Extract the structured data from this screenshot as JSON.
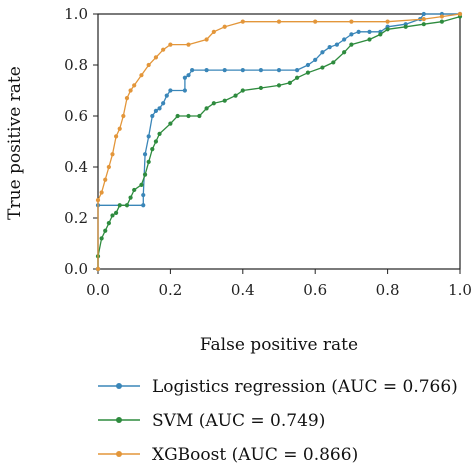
{
  "chart_data": {
    "type": "line",
    "xlabel": "False positive rate",
    "ylabel": "True positive rate",
    "xlim": [
      0,
      1
    ],
    "ylim": [
      0,
      1
    ],
    "xticks": [
      "0.0",
      "0.2",
      "0.4",
      "0.6",
      "0.8",
      "1.0"
    ],
    "yticks": [
      "0.0",
      "0.2",
      "0.4",
      "0.6",
      "0.8",
      "1.0"
    ],
    "grid": false,
    "legend_position": "below",
    "series": [
      {
        "name": "Logistics regression (AUC = 0.766)",
        "color": "#3a86b8",
        "points": [
          [
            0,
            0
          ],
          [
            0,
            0.25
          ],
          [
            0.125,
            0.25
          ],
          [
            0.125,
            0.29
          ],
          [
            0.13,
            0.45
          ],
          [
            0.14,
            0.52
          ],
          [
            0.15,
            0.6
          ],
          [
            0.16,
            0.62
          ],
          [
            0.17,
            0.63
          ],
          [
            0.18,
            0.65
          ],
          [
            0.19,
            0.68
          ],
          [
            0.2,
            0.7
          ],
          [
            0.24,
            0.7
          ],
          [
            0.24,
            0.75
          ],
          [
            0.25,
            0.76
          ],
          [
            0.26,
            0.78
          ],
          [
            0.3,
            0.78
          ],
          [
            0.35,
            0.78
          ],
          [
            0.4,
            0.78
          ],
          [
            0.45,
            0.78
          ],
          [
            0.5,
            0.78
          ],
          [
            0.55,
            0.78
          ],
          [
            0.58,
            0.8
          ],
          [
            0.6,
            0.82
          ],
          [
            0.62,
            0.85
          ],
          [
            0.64,
            0.87
          ],
          [
            0.66,
            0.88
          ],
          [
            0.68,
            0.9
          ],
          [
            0.7,
            0.92
          ],
          [
            0.72,
            0.93
          ],
          [
            0.75,
            0.93
          ],
          [
            0.78,
            0.93
          ],
          [
            0.8,
            0.95
          ],
          [
            0.85,
            0.96
          ],
          [
            0.89,
            0.98
          ],
          [
            0.9,
            1.0
          ],
          [
            0.95,
            1.0
          ],
          [
            1.0,
            1.0
          ]
        ]
      },
      {
        "name": "SVM (AUC = 0.749)",
        "color": "#2e8b3e",
        "points": [
          [
            0,
            0
          ],
          [
            0,
            0.05
          ],
          [
            0.01,
            0.12
          ],
          [
            0.02,
            0.15
          ],
          [
            0.03,
            0.18
          ],
          [
            0.04,
            0.21
          ],
          [
            0.05,
            0.22
          ],
          [
            0.06,
            0.25
          ],
          [
            0.08,
            0.25
          ],
          [
            0.09,
            0.28
          ],
          [
            0.1,
            0.31
          ],
          [
            0.12,
            0.33
          ],
          [
            0.13,
            0.37
          ],
          [
            0.14,
            0.42
          ],
          [
            0.15,
            0.47
          ],
          [
            0.16,
            0.5
          ],
          [
            0.17,
            0.53
          ],
          [
            0.2,
            0.57
          ],
          [
            0.22,
            0.6
          ],
          [
            0.25,
            0.6
          ],
          [
            0.28,
            0.6
          ],
          [
            0.3,
            0.63
          ],
          [
            0.32,
            0.65
          ],
          [
            0.35,
            0.66
          ],
          [
            0.38,
            0.68
          ],
          [
            0.4,
            0.7
          ],
          [
            0.45,
            0.71
          ],
          [
            0.5,
            0.72
          ],
          [
            0.53,
            0.73
          ],
          [
            0.55,
            0.75
          ],
          [
            0.58,
            0.77
          ],
          [
            0.62,
            0.79
          ],
          [
            0.65,
            0.81
          ],
          [
            0.68,
            0.85
          ],
          [
            0.7,
            0.88
          ],
          [
            0.75,
            0.9
          ],
          [
            0.78,
            0.92
          ],
          [
            0.8,
            0.94
          ],
          [
            0.85,
            0.95
          ],
          [
            0.9,
            0.96
          ],
          [
            0.95,
            0.97
          ],
          [
            1.0,
            0.99
          ]
        ]
      },
      {
        "name": "XGBoost (AUC = 0.866)",
        "color": "#e3963a",
        "points": [
          [
            0,
            0
          ],
          [
            0,
            0.27
          ],
          [
            0.01,
            0.3
          ],
          [
            0.02,
            0.35
          ],
          [
            0.03,
            0.4
          ],
          [
            0.04,
            0.45
          ],
          [
            0.05,
            0.52
          ],
          [
            0.06,
            0.55
          ],
          [
            0.07,
            0.6
          ],
          [
            0.08,
            0.67
          ],
          [
            0.09,
            0.7
          ],
          [
            0.1,
            0.72
          ],
          [
            0.12,
            0.76
          ],
          [
            0.14,
            0.8
          ],
          [
            0.16,
            0.83
          ],
          [
            0.18,
            0.86
          ],
          [
            0.2,
            0.88
          ],
          [
            0.25,
            0.88
          ],
          [
            0.3,
            0.9
          ],
          [
            0.32,
            0.93
          ],
          [
            0.35,
            0.95
          ],
          [
            0.4,
            0.97
          ],
          [
            0.5,
            0.97
          ],
          [
            0.6,
            0.97
          ],
          [
            0.7,
            0.97
          ],
          [
            0.8,
            0.97
          ],
          [
            0.9,
            0.98
          ],
          [
            0.95,
            0.99
          ],
          [
            1.0,
            1.0
          ]
        ]
      }
    ]
  }
}
